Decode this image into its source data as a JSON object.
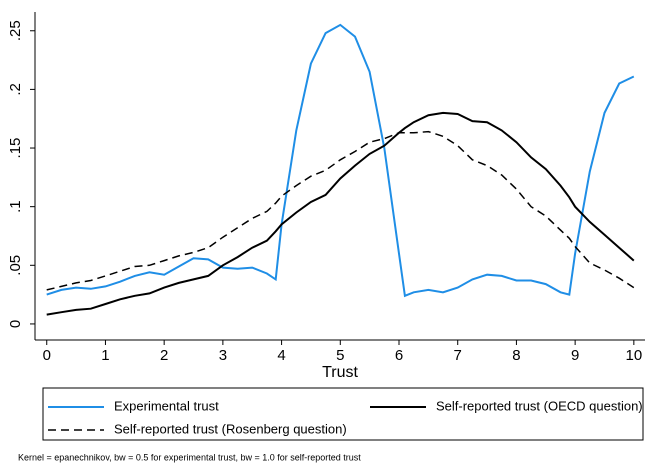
{
  "chart_data": {
    "type": "line",
    "x_label": "Trust",
    "note": "Kernel = epanechnikov, bw = 0.5 for experimental trust, bw = 1.0 for self-reported trust",
    "x": [
      0,
      0.25,
      0.5,
      0.75,
      1,
      1.25,
      1.5,
      1.75,
      2,
      2.25,
      2.5,
      2.75,
      3,
      3.25,
      3.5,
      3.75,
      3.9,
      4,
      4.25,
      4.5,
      4.75,
      5,
      5.25,
      5.5,
      5.75,
      6,
      6.1,
      6.25,
      6.5,
      6.75,
      7,
      7.25,
      7.5,
      7.75,
      8,
      8.25,
      8.5,
      8.75,
      8.9,
      9,
      9.25,
      9.5,
      9.75,
      10
    ],
    "series": [
      {
        "name": "Experimental trust",
        "color": "#1f8ee6",
        "dashed": false,
        "values": [
          0.025,
          0.029,
          0.031,
          0.03,
          0.032,
          0.036,
          0.041,
          0.044,
          0.042,
          0.049,
          0.056,
          0.055,
          0.048,
          0.047,
          0.048,
          0.043,
          0.038,
          0.085,
          0.165,
          0.222,
          0.248,
          0.255,
          0.245,
          0.215,
          0.15,
          0.06,
          0.024,
          0.027,
          0.029,
          0.027,
          0.031,
          0.038,
          0.042,
          0.041,
          0.037,
          0.037,
          0.034,
          0.027,
          0.025,
          0.06,
          0.13,
          0.18,
          0.205,
          0.211
        ]
      },
      {
        "name": "Self-reported trust (OECD question)",
        "color": "#000000",
        "dashed": false,
        "values": [
          0.008,
          0.01,
          0.012,
          0.013,
          0.017,
          0.021,
          0.024,
          0.026,
          0.031,
          0.035,
          0.038,
          0.041,
          0.05,
          0.057,
          0.065,
          0.071,
          0.079,
          0.085,
          0.095,
          0.104,
          0.11,
          0.124,
          0.135,
          0.145,
          0.152,
          0.163,
          0.167,
          0.172,
          0.178,
          0.18,
          0.179,
          0.173,
          0.172,
          0.165,
          0.155,
          0.142,
          0.132,
          0.118,
          0.108,
          0.1,
          0.087,
          0.076,
          0.065,
          0.054
        ]
      },
      {
        "name": "Self-reported trust (Rosenberg question)",
        "color": "#000000",
        "dashed": true,
        "values": [
          0.029,
          0.032,
          0.035,
          0.037,
          0.041,
          0.045,
          0.049,
          0.05,
          0.054,
          0.058,
          0.061,
          0.065,
          0.074,
          0.082,
          0.09,
          0.096,
          0.103,
          0.109,
          0.118,
          0.126,
          0.131,
          0.14,
          0.147,
          0.155,
          0.158,
          0.163,
          0.163,
          0.163,
          0.164,
          0.16,
          0.152,
          0.14,
          0.135,
          0.127,
          0.115,
          0.1,
          0.092,
          0.08,
          0.073,
          0.066,
          0.052,
          0.046,
          0.039,
          0.031
        ]
      }
    ],
    "xlim": [
      -0.2,
      10.19
    ],
    "ylim": [
      -0.0137,
      0.266
    ],
    "xticks": [
      0,
      1,
      2,
      3,
      4,
      5,
      6,
      7,
      8,
      9,
      10
    ],
    "yticks": [
      0,
      {
        "value": 0.05,
        "label": ".05"
      },
      {
        "value": 0.1,
        "label": ".1"
      },
      {
        "value": 0.15,
        "label": ".15"
      },
      {
        "value": 0.2,
        "label": ".2"
      },
      {
        "value": 0.25,
        "label": ".25"
      }
    ],
    "grid": false
  }
}
